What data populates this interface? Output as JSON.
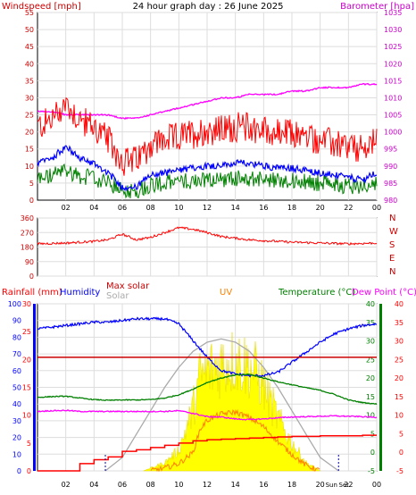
{
  "title": "24 hour graph day : 26 June 2025",
  "x_ticks": [
    "02",
    "04",
    "06",
    "08",
    "10",
    "12",
    "14",
    "16",
    "18",
    "20",
    "22",
    "00"
  ],
  "panel1": {
    "left_label": "Windspeed [mph]",
    "right_label": "Barometer [hpa]",
    "left_ticks": [
      "0",
      "5",
      "10",
      "15",
      "20",
      "25",
      "30",
      "35",
      "40",
      "45",
      "50",
      "55"
    ],
    "right_ticks": [
      "980",
      "985",
      "990",
      "995",
      "1000",
      "1005",
      "1010",
      "1015",
      "1020",
      "1025",
      "1030",
      "1035"
    ],
    "colors": {
      "gust": "#ff0000",
      "average": "#0000ff",
      "wind_low": "#008000",
      "barometer": "#ff00ff",
      "left_axis": "#cc0000",
      "right_axis": "#cc00cc"
    }
  },
  "panel2": {
    "ticks": [
      "0",
      "90",
      "180",
      "270",
      "360"
    ],
    "compass": [
      "N",
      "W",
      "S",
      "E",
      "N"
    ],
    "colors": {
      "direction": "#ff0000",
      "compass": "#cc0000"
    }
  },
  "panel3": {
    "labels": {
      "rainfall": "Rainfall (mm)",
      "humidity": "Humidity",
      "max_solar": "Max solar",
      "solar": "Solar",
      "uv": "UV",
      "temperature": "Temperature (°C)",
      "dew_point": "Dew Point (°C)"
    },
    "left_ticks_rain": [
      "0",
      "5",
      "10",
      "15",
      "20",
      "25",
      "30"
    ],
    "left_ticks_humidity": [
      "0",
      "10",
      "20",
      "30",
      "40",
      "50",
      "60",
      "70",
      "80",
      "90",
      "100"
    ],
    "right_ticks_temp": [
      "-5",
      "0",
      "5",
      "10",
      "15",
      "20",
      "25",
      "30",
      "35",
      "40"
    ],
    "right_ticks_dew": [
      "-5",
      "0",
      "5",
      "10",
      "15",
      "20",
      "25",
      "30",
      "35",
      "40"
    ],
    "sun_labels": {
      "rise": "Sun",
      "set": "Set"
    },
    "colors": {
      "rainfall": "#ff0000",
      "humidity": "#0000ff",
      "max_solar": "#cc0000",
      "solar": "#aaaaaa",
      "uv": "#ff8000",
      "temperature": "#008000",
      "dew_point": "#ff00ff",
      "solar_fill": "#ffff00"
    }
  },
  "chart_data": [
    {
      "type": "line",
      "x_hours": [
        0,
        1,
        2,
        3,
        4,
        5,
        6,
        7,
        8,
        9,
        10,
        11,
        12,
        13,
        14,
        15,
        16,
        17,
        18,
        19,
        20,
        21,
        22,
        23,
        24
      ],
      "series": [
        {
          "name": "Windspeed [mph]",
          "values": [
            14,
            16,
            21,
            16,
            14,
            10,
            4,
            4,
            9,
            10,
            11,
            12,
            13,
            13,
            14,
            14,
            13,
            12,
            12,
            11,
            10,
            9,
            8,
            7,
            10
          ]
        },
        {
          "name": "Barometer [hpa]",
          "values": [
            1006,
            1006,
            1005,
            1005,
            1005,
            1005,
            1004,
            1004,
            1005,
            1006,
            1007,
            1008,
            1009,
            1010,
            1010,
            1011,
            1011,
            1011,
            1012,
            1012,
            1013,
            1013,
            1013,
            1014,
            1014
          ]
        }
      ],
      "yleft": [
        0,
        55
      ],
      "yright": [
        980,
        1035
      ]
    },
    {
      "type": "line",
      "x_hours": [
        0,
        2,
        4,
        5,
        6,
        7,
        8,
        9,
        10,
        11,
        12,
        13,
        14,
        15,
        16,
        18,
        20,
        22,
        24
      ],
      "series": [
        {
          "values": [
            200,
            205,
            215,
            225,
            260,
            225,
            240,
            270,
            300,
            290,
            270,
            245,
            235,
            225,
            220,
            210,
            205,
            200,
            205
          ]
        }
      ],
      "ylim": [
        0,
        360
      ]
    },
    {
      "type": "line",
      "x_hours": [
        0,
        1,
        2,
        3,
        4,
        5,
        6,
        7,
        8,
        9,
        10,
        11,
        12,
        13,
        14,
        15,
        16,
        17,
        18,
        19,
        20,
        21,
        22,
        23,
        24
      ],
      "series": [
        {
          "name": "Humidity",
          "values": [
            85,
            86,
            87,
            88,
            89,
            89,
            90,
            91,
            91,
            91,
            88,
            78,
            68,
            60,
            58,
            57,
            57,
            59,
            65,
            71,
            77,
            82,
            85,
            87,
            88
          ]
        },
        {
          "name": "Temperature (°C)",
          "values": [
            14.8,
            15,
            15.1,
            14.6,
            14.2,
            14,
            14.1,
            14.1,
            14.2,
            14.6,
            15.5,
            17,
            18.8,
            20,
            20.8,
            21,
            20,
            19,
            18.2,
            17.4,
            16.7,
            15.6,
            14.1,
            13.4,
            13
          ]
        },
        {
          "name": "Dew Point (°C)",
          "values": [
            11,
            11.2,
            11.3,
            11,
            11,
            11,
            11,
            11,
            11,
            11,
            11.2,
            10.5,
            9.6,
            9.5,
            9,
            8.8,
            9,
            9.3,
            9.5,
            9.6,
            9.7,
            9.8,
            9.7,
            9.6,
            9.4
          ]
        },
        {
          "name": "Rainfall (mm)",
          "values": [
            0,
            0,
            0,
            1.3,
            2,
            2.5,
            3.5,
            3.8,
            4.2,
            4.6,
            5,
            5.4,
            5.6,
            5.7,
            5.8,
            5.9,
            6,
            6.1,
            6.2,
            6.2,
            6.3,
            6.3,
            6.3,
            6.4,
            6.4
          ]
        }
      ],
      "solar_max_hours": [
        4.8,
        6,
        7,
        8,
        9,
        10,
        11,
        12,
        13,
        14,
        15,
        16,
        17,
        18,
        19,
        20,
        21.3
      ],
      "solar_max_values": [
        0,
        80,
        220,
        360,
        500,
        620,
        715,
        770,
        790,
        770,
        715,
        620,
        500,
        360,
        220,
        80,
        0
      ],
      "solar_hours": [
        7.5,
        8,
        9,
        10,
        11,
        11.5,
        12,
        13,
        14,
        15,
        15.5,
        16,
        17,
        18,
        19,
        20
      ],
      "solar_values": [
        0,
        20,
        60,
        150,
        450,
        680,
        720,
        780,
        800,
        760,
        700,
        620,
        380,
        200,
        60,
        0
      ],
      "uv_hours": [
        8,
        9,
        10,
        11,
        11.5,
        12,
        13,
        14,
        15,
        16,
        17,
        18,
        19,
        20
      ],
      "uv_values": [
        0,
        0.3,
        0.8,
        2,
        4.5,
        5.5,
        6.2,
        6.4,
        5.8,
        4.8,
        3.2,
        1.8,
        0.6,
        0
      ]
    }
  ]
}
